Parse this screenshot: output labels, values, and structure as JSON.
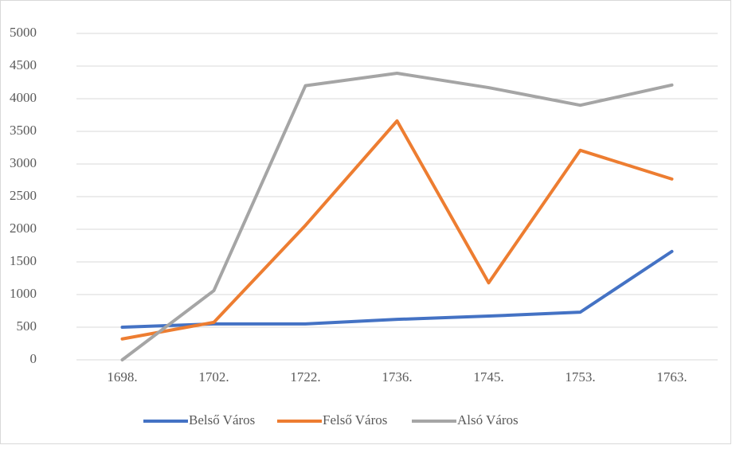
{
  "chart_data": {
    "type": "line",
    "categories": [
      "1698.",
      "1702.",
      "1722.",
      "1736.",
      "1745.",
      "1753.",
      "1763."
    ],
    "series": [
      {
        "name": "Belső Város",
        "color": "#4472c4",
        "values": [
          500,
          550,
          550,
          620,
          670,
          730,
          1660
        ]
      },
      {
        "name": "Felső Város",
        "color": "#ed7d31",
        "values": [
          320,
          575,
          2060,
          3660,
          1180,
          3210,
          2770
        ]
      },
      {
        "name": "Alsó Város",
        "color": "#a5a5a5",
        "values": [
          0,
          1060,
          4200,
          4390,
          4170,
          3900,
          4210
        ]
      }
    ],
    "ylim": [
      0,
      5000
    ],
    "yticks": [
      0,
      500,
      1000,
      1500,
      2000,
      2500,
      3000,
      3500,
      4000,
      4500,
      5000
    ],
    "grid": true,
    "legend": "bottom"
  }
}
